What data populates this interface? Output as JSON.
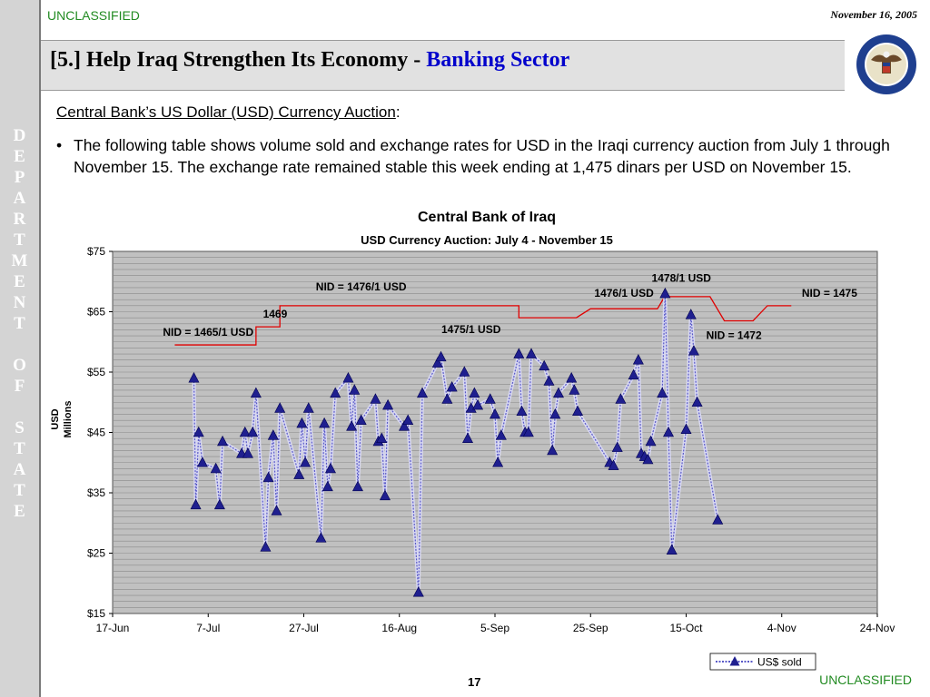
{
  "classification": "UNCLASSIFIED",
  "date": "November 16, 2005",
  "sidebar_letters": [
    "D",
    "E",
    "P",
    "A",
    "R",
    "T",
    "M",
    "E",
    "N",
    "T",
    "",
    "O",
    "F",
    "",
    "S",
    "T",
    "A",
    "T",
    "E"
  ],
  "title": {
    "part1": "[5.] Help Iraq Strengthen Its Economy - ",
    "part2": "Banking Sector"
  },
  "subheading": "Central Bank’s US Dollar (USD) Currency Auction",
  "subheading_suffix": ":",
  "bullet_text": "The following table shows volume sold and exchange rates for USD in the Iraqi currency auction from July 1 through November 15.  The exchange rate remained stable this week ending at 1,475 dinars per USD on November 15.",
  "page_number": "17",
  "colors": {
    "accent_blue": "#0000cc",
    "classification_green": "#228b22",
    "sidebar": "#d4d4d4",
    "series": "#1f1f8f",
    "rate_line": "#e00000",
    "plot_bg": "#c0c0c0"
  },
  "chart_data": {
    "type": "line",
    "title": "Central Bank of Iraq",
    "subtitle": "USD Currency Auction: July 4 - November 15",
    "ylabel": [
      "USD",
      "Millions"
    ],
    "xlabel": "",
    "ylim": [
      15,
      75
    ],
    "yticks": [
      15,
      25,
      35,
      45,
      55,
      65,
      75
    ],
    "ytick_labels": [
      "$15",
      "$25",
      "$35",
      "$45",
      "$55",
      "$65",
      "$75"
    ],
    "xlim_days": [
      0,
      160
    ],
    "xticks": [
      {
        "day": 0,
        "label": "17-Jun"
      },
      {
        "day": 20,
        "label": "7-Jul"
      },
      {
        "day": 40,
        "label": "27-Jul"
      },
      {
        "day": 60,
        "label": "16-Aug"
      },
      {
        "day": 80,
        "label": "5-Sep"
      },
      {
        "day": 100,
        "label": "25-Sep"
      },
      {
        "day": 120,
        "label": "15-Oct"
      },
      {
        "day": 140,
        "label": "4-Nov"
      },
      {
        "day": 160,
        "label": "24-Nov"
      }
    ],
    "grid": true,
    "legend": {
      "position": "bottom-right",
      "label": "US$ sold"
    },
    "series": [
      {
        "name": "US$ sold",
        "points": [
          [
            17.0,
            54
          ],
          [
            17.4,
            33
          ],
          [
            18.0,
            45
          ],
          [
            18.8,
            40
          ],
          [
            21.6,
            39
          ],
          [
            22.4,
            33
          ],
          [
            23.0,
            43.5
          ],
          [
            27.0,
            41.5
          ],
          [
            27.7,
            45
          ],
          [
            28.3,
            41.5
          ],
          [
            29.3,
            45
          ],
          [
            30.0,
            51.5
          ],
          [
            32.0,
            26
          ],
          [
            32.6,
            37.5
          ],
          [
            33.6,
            44.5
          ],
          [
            34.3,
            32
          ],
          [
            35.0,
            49
          ],
          [
            39.0,
            38
          ],
          [
            39.6,
            46.5
          ],
          [
            40.3,
            40
          ],
          [
            41.0,
            49
          ],
          [
            43.6,
            27.5
          ],
          [
            44.3,
            46.5
          ],
          [
            45.0,
            36
          ],
          [
            45.6,
            39
          ],
          [
            46.6,
            51.5
          ],
          [
            49.3,
            54
          ],
          [
            50.0,
            46
          ],
          [
            50.6,
            52
          ],
          [
            51.3,
            36
          ],
          [
            52.0,
            47
          ],
          [
            55.0,
            50.5
          ],
          [
            55.6,
            43.5
          ],
          [
            56.3,
            44
          ],
          [
            57.0,
            34.5
          ],
          [
            57.6,
            49.5
          ],
          [
            61.0,
            46
          ],
          [
            61.8,
            47
          ],
          [
            64.0,
            18.5
          ],
          [
            64.8,
            51.5
          ],
          [
            68.0,
            56.5
          ],
          [
            68.7,
            57.5
          ],
          [
            70.0,
            50.5
          ],
          [
            71.0,
            52.5
          ],
          [
            73.6,
            55
          ],
          [
            74.3,
            44
          ],
          [
            75.0,
            49
          ],
          [
            75.7,
            51.5
          ],
          [
            76.4,
            49.5
          ],
          [
            79.0,
            50.5
          ],
          [
            80.0,
            48
          ],
          [
            80.6,
            40
          ],
          [
            81.3,
            44.5
          ],
          [
            85.0,
            58
          ],
          [
            85.6,
            48.5
          ],
          [
            86.3,
            45
          ],
          [
            87.0,
            45
          ],
          [
            87.6,
            58
          ],
          [
            90.3,
            56
          ],
          [
            91.3,
            53.5
          ],
          [
            92.0,
            42
          ],
          [
            92.6,
            48
          ],
          [
            93.3,
            51.5
          ],
          [
            96.0,
            54
          ],
          [
            96.6,
            52
          ],
          [
            97.3,
            48.5
          ],
          [
            104.0,
            40
          ],
          [
            104.8,
            39.5
          ],
          [
            105.6,
            42.5
          ],
          [
            106.3,
            50.5
          ],
          [
            109.0,
            54.5
          ],
          [
            110.0,
            57
          ],
          [
            110.6,
            41.5
          ],
          [
            111.3,
            41
          ],
          [
            112.0,
            40.5
          ],
          [
            112.6,
            43.5
          ],
          [
            115.0,
            51.5
          ],
          [
            115.6,
            68
          ],
          [
            116.3,
            45
          ],
          [
            117.0,
            25.5
          ],
          [
            120.0,
            45.5
          ],
          [
            121.0,
            64.5
          ],
          [
            121.6,
            58.5
          ],
          [
            122.3,
            50
          ],
          [
            126.6,
            30.5
          ]
        ]
      },
      {
        "name": "",
        "points": [
          [
            13,
            59.5
          ],
          [
            30,
            59.5
          ],
          [
            30,
            62.5
          ],
          [
            35,
            62.5
          ],
          [
            35,
            66
          ],
          [
            85,
            66
          ],
          [
            85,
            64
          ],
          [
            97,
            64
          ],
          [
            100,
            65.5
          ],
          [
            114,
            65.5
          ],
          [
            115.5,
            67.5
          ],
          [
            125,
            67.5
          ],
          [
            128,
            63.5
          ],
          [
            134,
            63.5
          ],
          [
            137,
            66
          ],
          [
            142,
            66
          ]
        ]
      }
    ],
    "annotations": [
      {
        "text": "NID = 1465/1 USD",
        "x": 20,
        "y": 61
      },
      {
        "text": "1469",
        "x": 34,
        "y": 64
      },
      {
        "text": "NID = 1476/1 USD",
        "x": 52,
        "y": 68.5
      },
      {
        "text": "1475/1 USD",
        "x": 75,
        "y": 61.5
      },
      {
        "text": "1476/1 USD",
        "x": 107,
        "y": 67.5
      },
      {
        "text": "1478/1 USD",
        "x": 119,
        "y": 70
      },
      {
        "text": "NID = 1472",
        "x": 130,
        "y": 60.5
      },
      {
        "text": "NID = 1475",
        "x": 150,
        "y": 67.5
      }
    ]
  }
}
